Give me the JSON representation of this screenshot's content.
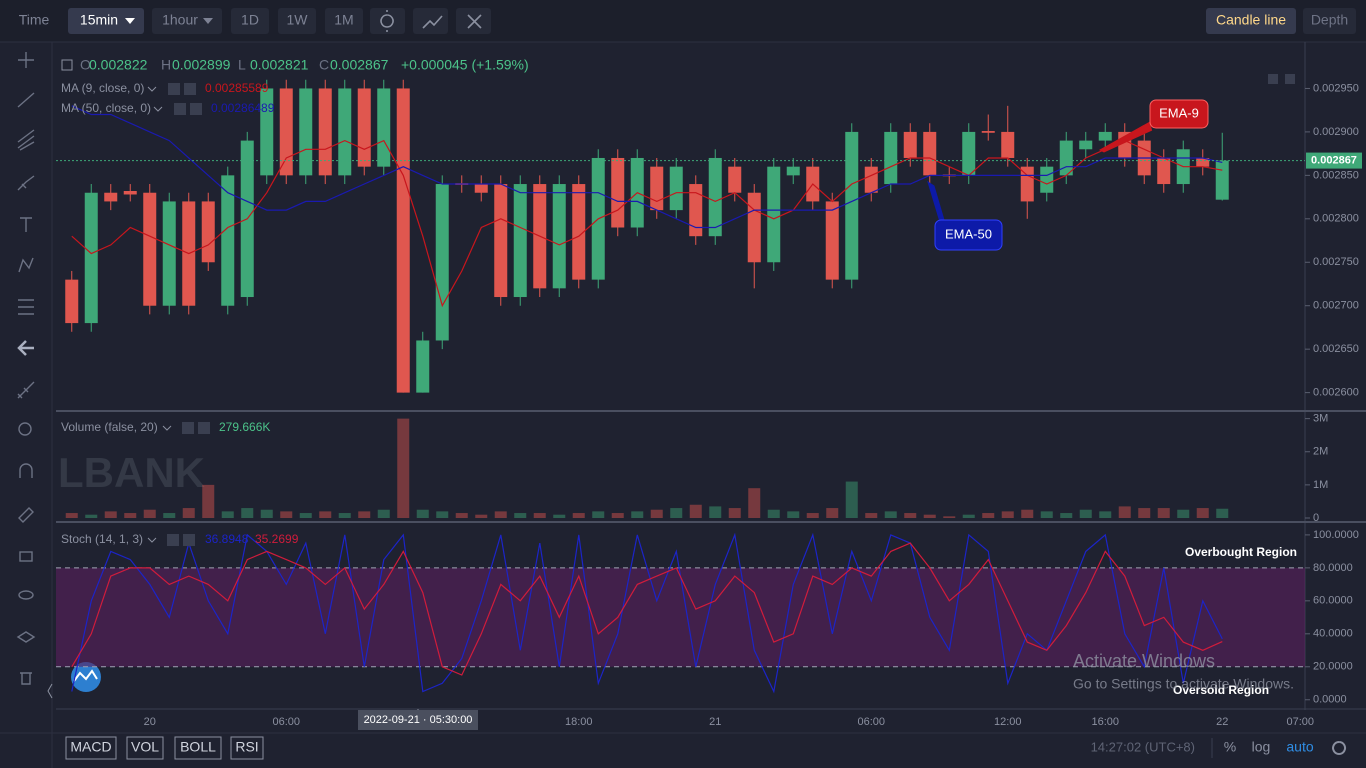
{
  "toolbar": {
    "intervals": [
      "Time",
      "15min",
      "1hour",
      "1D",
      "1W",
      "1M"
    ],
    "views": [
      "Candle line",
      "Depth"
    ]
  },
  "indicators": [
    "MACD",
    "VOL",
    "BOLL",
    "RSI"
  ],
  "status": {
    "clock": "14:27:02 (UTC+8)",
    "options": [
      "%",
      "log",
      "auto"
    ]
  },
  "watermark": "LBANK",
  "overlay": {
    "title": "Activate Windows",
    "text": "Go to Settings to activate Windows."
  },
  "chart_data": [
    {
      "type": "candlestick",
      "header": {
        "labels": [
          "O",
          "H",
          "L",
          "C"
        ],
        "change": "+0.000045 (+1.59%)"
      },
      "crosshair_label": "2022-09-21 · 05:30:00",
      "up_color": "#3fa878",
      "down_color": "#e0574f",
      "categories": [
        null,
        null,
        null,
        null,
        "20",
        null,
        null,
        null,
        null,
        null,
        null,
        "06:00",
        null,
        null,
        null,
        null,
        null,
        null,
        null,
        null,
        null,
        null,
        null,
        null,
        null,
        null,
        "18:00",
        null,
        null,
        null,
        null,
        null,
        null,
        "21",
        null,
        null,
        null,
        null,
        null,
        null,
        null,
        "06:00",
        null,
        null,
        null,
        null,
        null,
        null,
        "12:00",
        null,
        null,
        null,
        null,
        "16:00",
        null,
        null,
        null,
        null,
        null,
        "22",
        null,
        null,
        null,
        "07:00"
      ],
      "open": [
        0.00273,
        0.00268,
        0.00283,
        0.002832,
        0.00283,
        0.0027,
        0.00282,
        0.00282,
        0.0027,
        0.00271,
        0.00285,
        0.00295,
        0.00285,
        0.00295,
        0.00285,
        0.00295,
        0.00286,
        0.00295,
        0.0026,
        0.00266,
        0.002841,
        0.00284,
        0.00284,
        0.00271,
        0.00284,
        0.00272,
        0.00284,
        0.00273,
        0.00287,
        0.00279,
        0.00286,
        0.00281,
        0.00284,
        0.00278,
        0.00286,
        0.00283,
        0.00275,
        0.00285,
        0.00286,
        0.00282,
        0.00273,
        0.00286,
        0.00284,
        0.0029,
        0.0029,
        0.002851,
        0.00285,
        0.002901,
        0.0029,
        0.00286,
        0.00283,
        0.00285,
        0.00288,
        0.00289,
        0.0029,
        0.00289,
        0.00287,
        0.00284,
        0.00287,
        0.002822,
        null,
        null,
        null,
        null
      ],
      "high": [
        0.00274,
        0.00284,
        0.00284,
        0.00284,
        0.00284,
        0.00283,
        0.00283,
        0.00283,
        0.00286,
        0.0029,
        0.00296,
        0.00296,
        0.00296,
        0.00296,
        0.00296,
        0.00296,
        0.00296,
        0.00296,
        0.00267,
        0.00285,
        0.00285,
        0.00285,
        0.00285,
        0.00285,
        0.00285,
        0.00285,
        0.00285,
        0.00288,
        0.00288,
        0.00288,
        0.00287,
        0.00287,
        0.00285,
        0.00288,
        0.00287,
        0.00284,
        0.00287,
        0.00287,
        0.00287,
        0.00283,
        0.00291,
        0.00287,
        0.00291,
        0.00291,
        0.00291,
        0.00286,
        0.00291,
        0.00292,
        0.00293,
        0.00287,
        0.00287,
        0.0029,
        0.0029,
        0.00291,
        0.00291,
        0.0029,
        0.00288,
        0.00289,
        0.00288,
        0.002899,
        null,
        null,
        null,
        null
      ],
      "low": [
        0.00267,
        0.00267,
        0.00281,
        0.00282,
        0.00269,
        0.00269,
        0.00269,
        0.00274,
        0.00269,
        0.0027,
        0.00284,
        0.00284,
        0.00284,
        0.00284,
        0.00284,
        0.00285,
        0.00285,
        0.0026,
        0.0026,
        0.00265,
        0.00283,
        0.00282,
        0.0027,
        0.0027,
        0.00271,
        0.00271,
        0.00272,
        0.00272,
        0.00278,
        0.00278,
        0.0028,
        0.0028,
        0.00277,
        0.00277,
        0.00282,
        0.00272,
        0.00274,
        0.00284,
        0.00281,
        0.00272,
        0.00272,
        0.00282,
        0.00283,
        0.00286,
        0.00284,
        0.00284,
        0.00284,
        0.00289,
        0.00286,
        0.0028,
        0.00282,
        0.00284,
        0.00287,
        0.00288,
        0.00286,
        0.00284,
        0.00283,
        0.00283,
        0.00285,
        0.002821,
        null,
        null,
        null,
        null
      ],
      "close": [
        0.00268,
        0.00283,
        0.00282,
        0.002828,
        0.0027,
        0.00282,
        0.0027,
        0.00275,
        0.00285,
        0.00289,
        0.00295,
        0.00285,
        0.00295,
        0.00285,
        0.00295,
        0.00286,
        0.00295,
        0.0026,
        0.00266,
        0.00284,
        0.002839,
        0.00283,
        0.00271,
        0.00284,
        0.00272,
        0.00284,
        0.00273,
        0.00287,
        0.00279,
        0.00287,
        0.00281,
        0.00286,
        0.00278,
        0.00287,
        0.00283,
        0.00275,
        0.00286,
        0.00286,
        0.00282,
        0.00273,
        0.0029,
        0.00283,
        0.0029,
        0.00287,
        0.00285,
        0.002849,
        0.0029,
        0.002899,
        0.00287,
        0.00282,
        0.00286,
        0.00289,
        0.00289,
        0.0029,
        0.00287,
        0.00285,
        0.00284,
        0.00288,
        0.00286,
        0.002867,
        null,
        null,
        null,
        null
      ],
      "lines": [
        {
          "name": "MA (9, close, 0)",
          "color": "#c8161d",
          "values": [
            0.00278,
            0.00276,
            0.00277,
            0.00279,
            0.00278,
            0.00277,
            0.00276,
            0.00277,
            0.00279,
            0.0028,
            0.00283,
            0.00287,
            0.00288,
            0.00288,
            0.00289,
            0.00288,
            0.00289,
            0.00285,
            0.00278,
            0.0027,
            0.00274,
            0.00279,
            0.0028,
            0.00279,
            0.00278,
            0.00277,
            0.00278,
            0.0028,
            0.00281,
            0.00283,
            0.00282,
            0.00283,
            0.00283,
            0.00282,
            0.00283,
            0.00281,
            0.0028,
            0.00281,
            0.00284,
            0.00282,
            0.00284,
            0.00285,
            0.00286,
            0.00287,
            0.00287,
            0.00286,
            0.00285,
            0.00287,
            0.00287,
            0.00285,
            0.00284,
            0.00285,
            0.00287,
            0.00288,
            0.00289,
            0.00288,
            0.00287,
            0.00286,
            0.00286,
            0.00285589,
            null,
            null,
            null,
            null
          ]
        },
        {
          "name": "MA (50, close, 0)",
          "color": "#1a1ab0",
          "values": [
            0.00293,
            0.00292,
            0.00292,
            0.00291,
            0.0029,
            0.00289,
            0.00287,
            0.00285,
            0.00283,
            0.00282,
            0.00281,
            0.00281,
            0.00282,
            0.00282,
            0.00283,
            0.00284,
            0.00285,
            0.00286,
            0.00285,
            0.00284,
            0.00284,
            0.00284,
            0.00284,
            0.00283,
            0.00283,
            0.00283,
            0.00283,
            0.00283,
            0.00282,
            0.00282,
            0.00281,
            0.0028,
            0.00279,
            0.00279,
            0.0028,
            0.00281,
            0.00281,
            0.00281,
            0.00281,
            0.00281,
            0.00282,
            0.00283,
            0.00284,
            0.00284,
            0.00285,
            0.00285,
            0.00285,
            0.00285,
            0.00285,
            0.00285,
            0.00285,
            0.00286,
            0.00286,
            0.00287,
            0.00287,
            0.00287,
            0.00287,
            0.00287,
            0.00287,
            0.00286489,
            null,
            null,
            null,
            null
          ]
        }
      ],
      "annotations": [
        {
          "text": "EMA-9",
          "color": "#c8161d"
        },
        {
          "text": "EMA-50",
          "color": "#0d1aa8"
        }
      ],
      "ylim": [
        0.00258,
        0.003
      ],
      "yticks": [
        {
          "value": 0.0026,
          "label": "0.002600"
        },
        {
          "value": 0.00265,
          "label": "0.002650"
        },
        {
          "value": 0.0027,
          "label": "0.002700"
        },
        {
          "value": 0.00275,
          "label": "0.002750"
        },
        {
          "value": 0.0028,
          "label": "0.002800"
        },
        {
          "value": 0.00285,
          "label": "0.002850"
        },
        {
          "value": 0.0029,
          "label": "0.002900"
        },
        {
          "value": 0.00295,
          "label": "0.002950"
        }
      ]
    },
    {
      "type": "bar",
      "title": "Volume (false, 20)",
      "legend_value": "279.666K",
      "values": [
        150000,
        100000,
        200000,
        150000,
        250000,
        150000,
        300000,
        1000000,
        200000,
        300000,
        250000,
        200000,
        150000,
        200000,
        150000,
        200000,
        250000,
        3000000,
        250000,
        200000,
        150000,
        100000,
        200000,
        150000,
        150000,
        100000,
        150000,
        200000,
        150000,
        200000,
        250000,
        300000,
        400000,
        350000,
        300000,
        900000,
        250000,
        200000,
        150000,
        300000,
        1100000,
        150000,
        200000,
        150000,
        100000,
        50000,
        100000,
        150000,
        200000,
        250000,
        200000,
        150000,
        250000,
        200000,
        350000,
        300000,
        300000,
        250000,
        300000,
        279666,
        null,
        null,
        null,
        null
      ],
      "ylim": [
        0,
        3200000
      ],
      "yticks": [
        0,
        {
          "value": 1000000,
          "label": "1M"
        },
        {
          "value": 2000000,
          "label": "2M"
        },
        {
          "value": 3000000,
          "label": "3M"
        }
      ]
    },
    {
      "type": "line",
      "title": "Stoch (14, 1, 3)",
      "band": [
        20,
        80
      ],
      "band_color": "#5a1f5e",
      "series": [
        {
          "name": "K",
          "color": "#1c24c8",
          "values": [
            5,
            60,
            90,
            85,
            70,
            50,
            95,
            60,
            40,
            100,
            90,
            70,
            95,
            40,
            100,
            20,
            85,
            100,
            5,
            10,
            25,
            60,
            100,
            30,
            95,
            20,
            100,
            10,
            40,
            100,
            60,
            90,
            20,
            70,
            100,
            30,
            5,
            70,
            100,
            40,
            90,
            60,
            100,
            95,
            50,
            30,
            100,
            90,
            10,
            40,
            30,
            60,
            90,
            100,
            40,
            20,
            80,
            10,
            60,
            36.8948,
            null,
            null,
            null,
            null
          ]
        },
        {
          "name": "D",
          "color": "#d01c3c",
          "values": [
            20,
            40,
            75,
            80,
            80,
            70,
            75,
            70,
            60,
            85,
            90,
            85,
            80,
            70,
            80,
            55,
            70,
            90,
            65,
            20,
            15,
            40,
            70,
            60,
            75,
            50,
            75,
            40,
            50,
            70,
            75,
            80,
            55,
            60,
            75,
            65,
            35,
            40,
            75,
            70,
            80,
            75,
            90,
            95,
            80,
            60,
            70,
            85,
            60,
            35,
            30,
            45,
            65,
            90,
            75,
            45,
            50,
            35,
            30,
            35.2699,
            null,
            null,
            null,
            null
          ]
        }
      ],
      "annotations": [
        "Overbought Region",
        "Oversold Region"
      ],
      "ylim": [
        -5,
        106
      ],
      "yticks": [
        {
          "value": 0,
          "label": "0.0000"
        },
        {
          "value": 20,
          "label": "20.0000"
        },
        {
          "value": 40,
          "label": "40.0000"
        },
        {
          "value": 60,
          "label": "60.0000"
        },
        {
          "value": 80,
          "label": "80.0000"
        },
        {
          "value": 100,
          "label": "100.0000"
        }
      ]
    }
  ]
}
